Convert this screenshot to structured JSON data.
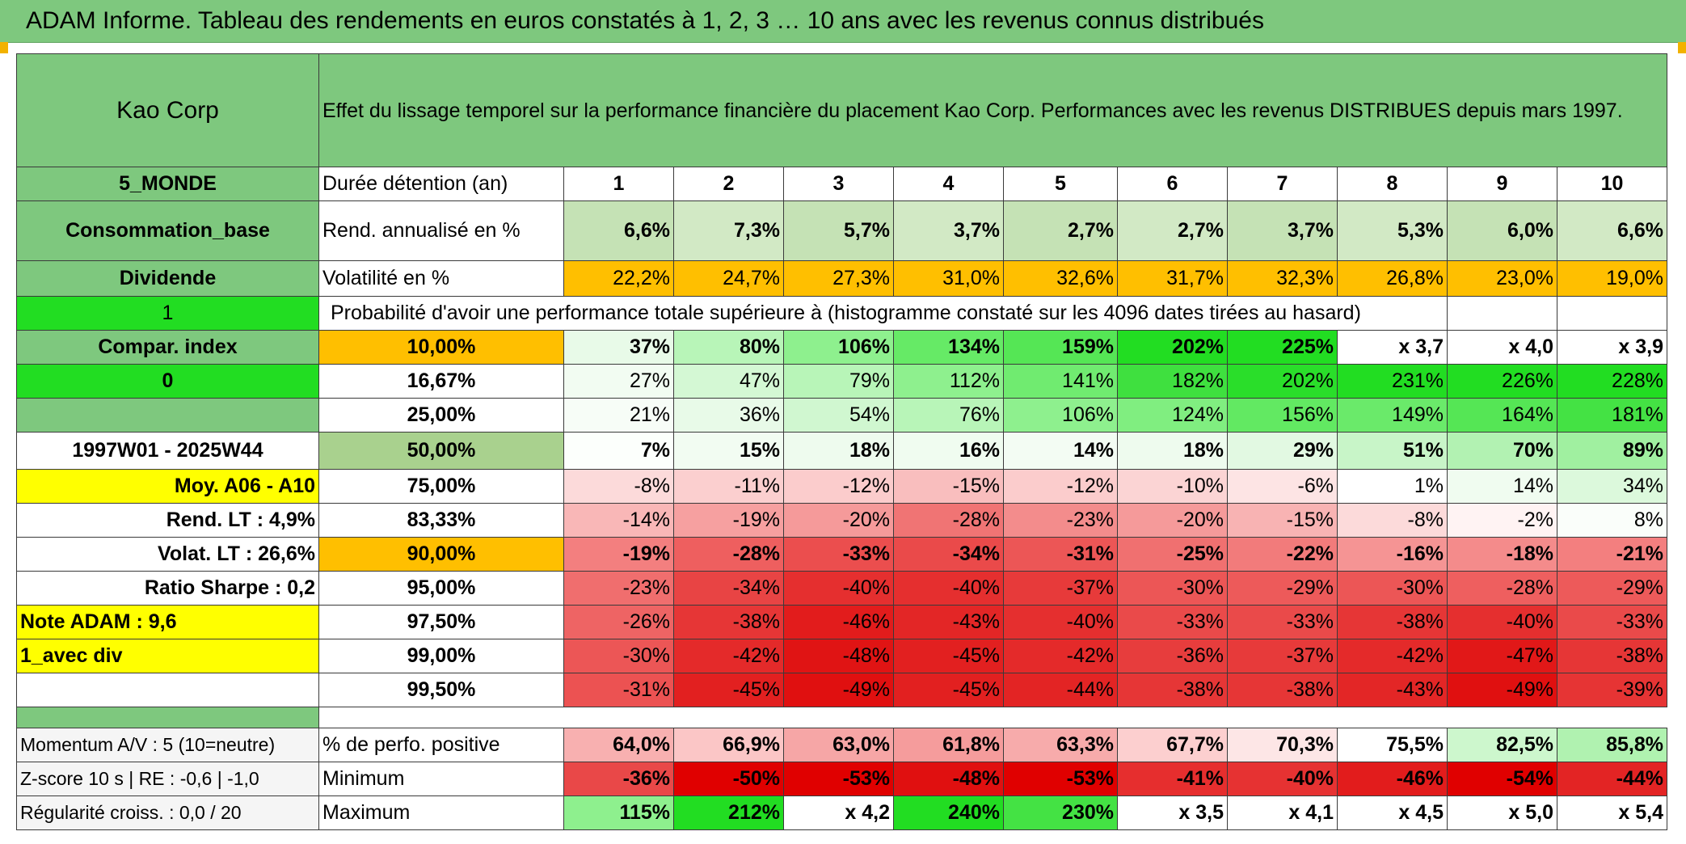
{
  "title": "ADAM Informe. Tableau des rendements en euros constatés à 1, 2, 3 … 10 ans avec les revenus connus distribués",
  "header": {
    "company": "Kao Corp",
    "description": "Effet du lissage temporel sur la performance financière du placement Kao Corp. Performances avec les revenus DISTRIBUES depuis mars 1997."
  },
  "left_labels": {
    "region": "5_MONDE",
    "sector": "Consommation_base",
    "dividend": "Dividende",
    "one": "1",
    "compar": "Compar. index",
    "zero": "0",
    "blank": "",
    "period": "1997W01 - 2025W44",
    "moy": "Moy. A06 - A10",
    "rend_lt": "Rend. LT :   4,9%",
    "volat_lt": "Volat. LT :   26,6%",
    "sharpe": "Ratio Sharpe :    0,2",
    "note": "Note ADAM : 9,6",
    "avec_div": "1_avec div"
  },
  "years_header": {
    "label": "Durée détention (an)",
    "years": [
      "1",
      "2",
      "3",
      "4",
      "5",
      "6",
      "7",
      "8",
      "9",
      "10"
    ]
  },
  "rend": {
    "label": "Rend. annualisé en %",
    "values": [
      "6,6%",
      "7,3%",
      "5,7%",
      "3,7%",
      "2,7%",
      "2,7%",
      "3,7%",
      "5,3%",
      "6,0%",
      "6,6%"
    ]
  },
  "volat": {
    "label": "Volatilité en %",
    "values": [
      "22,2%",
      "24,7%",
      "27,3%",
      "31,0%",
      "32,6%",
      "31,7%",
      "32,3%",
      "26,8%",
      "23,0%",
      "19,0%"
    ]
  },
  "proba_title": "Probabilité d'avoir une performance totale supérieure à (histogramme constaté sur les 4096 dates tirées au hasard)",
  "quantiles": [
    {
      "p": "10,00%",
      "values": [
        "37%",
        "80%",
        "106%",
        "134%",
        "159%",
        "202%",
        "225%",
        "x 3,7",
        "x 4,0",
        "x 3,9"
      ],
      "colors": [
        "#e8fae8",
        "#b8f5b8",
        "#8ef08e",
        "#66ea66",
        "#55e655",
        "#22dd22",
        "#22dd22",
        "#ffffff",
        "#ffffff",
        "#ffffff"
      ]
    },
    {
      "p": "16,67%",
      "values": [
        "27%",
        "47%",
        "79%",
        "112%",
        "141%",
        "182%",
        "202%",
        "231%",
        "226%",
        "228%"
      ],
      "colors": [
        "#f2fcf2",
        "#d4f8d4",
        "#b8f5b8",
        "#8ef08e",
        "#70eb70",
        "#3fe03f",
        "#2ade2a",
        "#22dd22",
        "#22dd22",
        "#22dd22"
      ]
    },
    {
      "p": "25,00%",
      "values": [
        "21%",
        "36%",
        "54%",
        "76%",
        "106%",
        "124%",
        "156%",
        "149%",
        "164%",
        "181%"
      ],
      "colors": [
        "#f7fdf7",
        "#e8fae8",
        "#d0f7d0",
        "#b8f5b8",
        "#8ef08e",
        "#80ee80",
        "#62e962",
        "#6aea6a",
        "#55e655",
        "#44e244"
      ]
    },
    {
      "p": "50,00%",
      "values": [
        "7%",
        "15%",
        "18%",
        "16%",
        "14%",
        "18%",
        "29%",
        "51%",
        "70%",
        "89%"
      ],
      "colors": [
        "#fcfffc",
        "#f2fcf2",
        "#eefbee",
        "#f0fcf0",
        "#f3fcf3",
        "#eefbee",
        "#e2f9e2",
        "#c8f5c8",
        "#b2f2b2",
        "#a0f0a0"
      ]
    },
    {
      "p": "75,00%",
      "values": [
        "-8%",
        "-11%",
        "-12%",
        "-15%",
        "-12%",
        "-10%",
        "-6%",
        "1%",
        "14%",
        "34%"
      ],
      "colors": [
        "#fcdada",
        "#fbcfcf",
        "#fbcccc",
        "#f9bebe",
        "#fbcccc",
        "#fbd4d4",
        "#fde4e4",
        "#ffffff",
        "#f0fcf0",
        "#dcf9dc"
      ]
    },
    {
      "p": "83,33%",
      "values": [
        "-14%",
        "-19%",
        "-20%",
        "-28%",
        "-23%",
        "-20%",
        "-15%",
        "-8%",
        "-2%",
        "8%"
      ],
      "colors": [
        "#f9b7b7",
        "#f6a0a0",
        "#f59a9a",
        "#f07474",
        "#f38c8c",
        "#f59a9a",
        "#f8b3b3",
        "#fcdada",
        "#fff3f3",
        "#fafefa"
      ]
    },
    {
      "p": "90,00%",
      "values": [
        "-19%",
        "-28%",
        "-33%",
        "-34%",
        "-31%",
        "-25%",
        "-22%",
        "-16%",
        "-18%",
        "-21%"
      ],
      "colors": [
        "#f37f7f",
        "#ee5f5f",
        "#eb4e4e",
        "#ea4a4a",
        "#ec5656",
        "#f07070",
        "#f27b7b",
        "#f59494",
        "#f48b8b",
        "#f37f7f"
      ]
    },
    {
      "p": "95,00%",
      "values": [
        "-23%",
        "-34%",
        "-40%",
        "-40%",
        "-37%",
        "-30%",
        "-29%",
        "-30%",
        "-28%",
        "-29%"
      ],
      "colors": [
        "#f06e6e",
        "#e84444",
        "#e52f2f",
        "#e52f2f",
        "#e73a3a",
        "#ec5656",
        "#ed5a5a",
        "#ec5656",
        "#ee5f5f",
        "#ed5a5a"
      ]
    },
    {
      "p": "97,50%",
      "values": [
        "-26%",
        "-38%",
        "-46%",
        "-43%",
        "-40%",
        "-33%",
        "-33%",
        "-38%",
        "-40%",
        "-33%"
      ],
      "colors": [
        "#ee6464",
        "#e63636",
        "#e21c1c",
        "#e32626",
        "#e52f2f",
        "#ea4a4a",
        "#ea4a4a",
        "#e63636",
        "#e52f2f",
        "#ea4a4a"
      ]
    },
    {
      "p": "99,00%",
      "values": [
        "-30%",
        "-42%",
        "-48%",
        "-45%",
        "-42%",
        "-36%",
        "-37%",
        "-42%",
        "-47%",
        "-38%"
      ],
      "colors": [
        "#ec5656",
        "#e42a2a",
        "#e01414",
        "#e22020",
        "#e42a2a",
        "#e73d3d",
        "#e73a3a",
        "#e42a2a",
        "#e11818",
        "#e63636"
      ]
    },
    {
      "p": "99,50%",
      "values": [
        "-31%",
        "-45%",
        "-49%",
        "-45%",
        "-44%",
        "-38%",
        "-38%",
        "-43%",
        "-49%",
        "-39%"
      ],
      "colors": [
        "#ec5252",
        "#e22020",
        "#e01010",
        "#e22020",
        "#e32424",
        "#e63636",
        "#e63636",
        "#e32626",
        "#e01010",
        "#e63434"
      ]
    }
  ],
  "stats": {
    "momentum": "Momentum A/V : 5 (10=neutre)",
    "zscore": "Z-score 10 s | RE : -0,6 | -1,0",
    "regularite": "Régularité croiss. : 0,0 / 20",
    "positive": {
      "label": "% de perfo. positive",
      "values": [
        "64,0%",
        "66,9%",
        "63,0%",
        "61,8%",
        "63,3%",
        "67,7%",
        "70,3%",
        "75,5%",
        "82,5%",
        "85,8%"
      ],
      "colors": [
        "#f8b0b0",
        "#fbc6c6",
        "#f6a6a6",
        "#f59c9c",
        "#f7abab",
        "#fccfcf",
        "#fde6e6",
        "#ffffff",
        "#cdf7cd",
        "#b0f2b0"
      ]
    },
    "minimum": {
      "label": "Minimum",
      "values": [
        "-36%",
        "-50%",
        "-53%",
        "-48%",
        "-53%",
        "-41%",
        "-40%",
        "-46%",
        "-54%",
        "-44%"
      ],
      "colors": [
        "#e94848",
        "#e00000",
        "#e00000",
        "#e01010",
        "#e00000",
        "#e62e2e",
        "#e63232",
        "#e21c1c",
        "#e00000",
        "#e32424"
      ]
    },
    "maximum": {
      "label": "Maximum",
      "values": [
        "115%",
        "212%",
        "x 4,2",
        "240%",
        "230%",
        "x 3,5",
        "x 4,1",
        "x 4,5",
        "x 5,0",
        "x 5,4"
      ],
      "colors": [
        "#8ef08e",
        "#22dd22",
        "#ffffff",
        "#22dd22",
        "#44e244",
        "#ffffff",
        "#ffffff",
        "#ffffff",
        "#ffffff",
        "#ffffff"
      ]
    }
  },
  "colors": {
    "header_green": "#7ec87e",
    "bright_green": "#22dd22",
    "orange": "#ffbf00",
    "yellow": "#ffff00",
    "red_text": "#d51010"
  }
}
